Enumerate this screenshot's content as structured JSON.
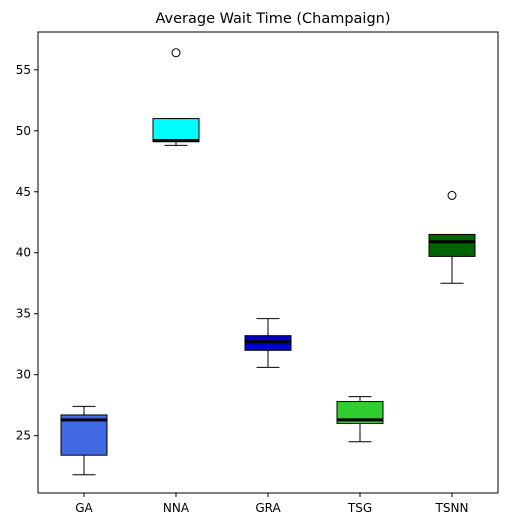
{
  "chart_data": {
    "type": "box",
    "title": "Average Wait Time (Champaign)",
    "xlabel": "",
    "ylabel": "",
    "ylim": [
      20.3,
      58.1
    ],
    "yticks": [
      25,
      30,
      35,
      40,
      45,
      50,
      55
    ],
    "grid": false,
    "categories": [
      "GA",
      "NNA",
      "GRA",
      "TSG",
      "TSNN"
    ],
    "boxes": [
      {
        "category": "GA",
        "whislo": 21.8,
        "q1": 23.4,
        "med": 26.3,
        "q3": 26.7,
        "whishi": 27.4,
        "fliers": [],
        "color": "#4169e1"
      },
      {
        "category": "NNA",
        "whislo": 48.8,
        "q1": 49.1,
        "med": 49.2,
        "q3": 51.0,
        "whishi": 51.0,
        "fliers": [
          56.4
        ],
        "color": "#00ffff"
      },
      {
        "category": "GRA",
        "whislo": 30.6,
        "q1": 32.0,
        "med": 32.7,
        "q3": 33.2,
        "whishi": 34.6,
        "fliers": [],
        "color": "#0000cd"
      },
      {
        "category": "TSG",
        "whislo": 24.5,
        "q1": 26.0,
        "med": 26.3,
        "q3": 27.8,
        "whishi": 28.2,
        "fliers": [],
        "color": "#32cd32"
      },
      {
        "category": "TSNN",
        "whislo": 37.5,
        "q1": 39.7,
        "med": 40.9,
        "q3": 41.5,
        "whishi": 41.5,
        "fliers": [
          44.7
        ],
        "color": "#006400"
      }
    ]
  }
}
